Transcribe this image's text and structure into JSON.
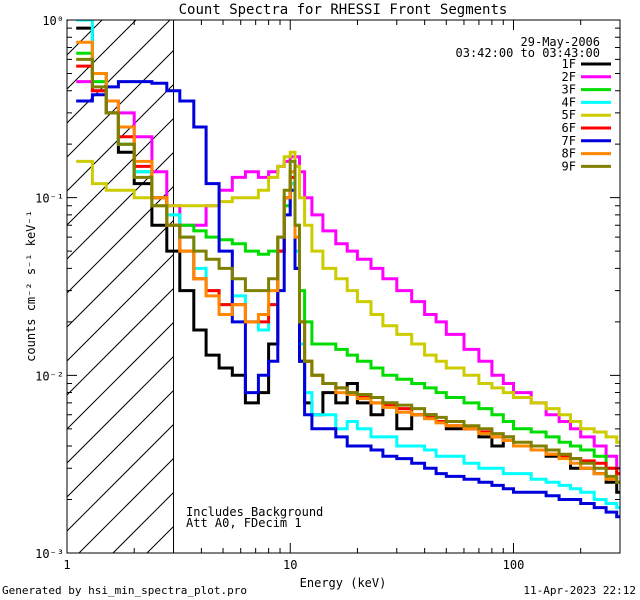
{
  "chart_data": {
    "type": "line",
    "title": "Count Spectra for RHESSI Front Segments",
    "xlabel": "Energy (keV)",
    "ylabel": "counts cm⁻² s⁻¹ keV⁻¹",
    "xscale": "log",
    "yscale": "log",
    "xlim": [
      1,
      300
    ],
    "ylim": [
      0.001,
      1
    ],
    "xticks": [
      {
        "value": 1,
        "label": "1"
      },
      {
        "value": 10,
        "label": "10"
      },
      {
        "value": 100,
        "label": "100"
      }
    ],
    "yticks": [
      {
        "value": 1,
        "label": "10⁰"
      },
      {
        "value": 0.1,
        "label": "10⁻¹"
      },
      {
        "value": 0.01,
        "label": "10⁻²"
      },
      {
        "value": 0.001,
        "label": "10⁻³"
      }
    ],
    "shaded_region": {
      "x_from": 1,
      "x_to": 3,
      "style": "diagonal hatch"
    },
    "date": "29-May-2006",
    "time_range": "03:42:00 to 03:43:00",
    "annotations": [
      "Includes Background",
      "Att A0, FDecim 1"
    ],
    "legend_position": "top-right",
    "series": [
      {
        "name": "1F",
        "color": "#000000",
        "x": [
          1.1,
          1.3,
          1.5,
          1.7,
          2.0,
          2.4,
          2.8,
          3.2,
          3.7,
          4.2,
          4.8,
          5.5,
          6.3,
          7.2,
          8.0,
          8.8,
          9.4,
          10.0,
          10.5,
          11.0,
          11.6,
          12.5,
          14,
          16,
          18,
          20,
          23,
          26,
          30,
          35,
          40,
          45,
          50,
          60,
          70,
          80,
          90,
          100,
          120,
          140,
          160,
          180,
          200,
          230,
          260,
          290
        ],
        "values": [
          0.9,
          0.5,
          0.3,
          0.18,
          0.12,
          0.07,
          0.05,
          0.03,
          0.018,
          0.013,
          0.011,
          0.01,
          0.007,
          0.008,
          0.015,
          0.05,
          0.1,
          0.12,
          0.04,
          0.012,
          0.007,
          0.006,
          0.008,
          0.007,
          0.009,
          0.007,
          0.006,
          0.007,
          0.005,
          0.006,
          0.006,
          0.0055,
          0.005,
          0.005,
          0.0045,
          0.004,
          0.0045,
          0.004,
          0.004,
          0.0035,
          0.0035,
          0.003,
          0.003,
          0.0028,
          0.0025,
          0.0022
        ]
      },
      {
        "name": "2F",
        "color": "#ff00ff",
        "x": [
          1.1,
          1.3,
          1.5,
          1.7,
          2.0,
          2.4,
          2.8,
          3.2,
          3.7,
          4.2,
          4.8,
          5.5,
          6.3,
          7.2,
          8.0,
          8.8,
          9.4,
          10.0,
          10.5,
          11.0,
          11.6,
          12.5,
          14,
          16,
          18,
          20,
          23,
          26,
          30,
          35,
          40,
          45,
          50,
          60,
          70,
          80,
          90,
          100,
          120,
          140,
          160,
          180,
          200,
          230,
          260,
          290
        ],
        "values": [
          0.45,
          0.4,
          0.35,
          0.3,
          0.22,
          0.14,
          0.09,
          0.07,
          0.07,
          0.09,
          0.11,
          0.13,
          0.14,
          0.13,
          0.14,
          0.15,
          0.16,
          0.17,
          0.17,
          0.14,
          0.1,
          0.08,
          0.065,
          0.055,
          0.05,
          0.045,
          0.04,
          0.035,
          0.03,
          0.026,
          0.022,
          0.02,
          0.017,
          0.014,
          0.012,
          0.01,
          0.009,
          0.008,
          0.007,
          0.006,
          0.0055,
          0.005,
          0.0045,
          0.004,
          0.0035,
          0.003
        ]
      },
      {
        "name": "3F",
        "color": "#00dd00",
        "x": [
          1.1,
          1.3,
          1.5,
          1.7,
          2.0,
          2.4,
          2.8,
          3.2,
          3.7,
          4.2,
          4.8,
          5.5,
          6.3,
          7.2,
          8.0,
          8.8,
          9.4,
          10.0,
          10.5,
          11.0,
          11.6,
          12.5,
          14,
          16,
          18,
          20,
          23,
          26,
          30,
          35,
          40,
          45,
          50,
          60,
          70,
          80,
          90,
          100,
          120,
          140,
          160,
          180,
          200,
          230,
          260,
          290
        ],
        "values": [
          0.65,
          0.45,
          0.3,
          0.2,
          0.14,
          0.1,
          0.08,
          0.07,
          0.065,
          0.06,
          0.058,
          0.055,
          0.05,
          0.048,
          0.05,
          0.06,
          0.09,
          0.14,
          0.07,
          0.03,
          0.02,
          0.015,
          0.015,
          0.014,
          0.013,
          0.012,
          0.011,
          0.01,
          0.0095,
          0.009,
          0.0085,
          0.008,
          0.0075,
          0.007,
          0.0065,
          0.006,
          0.0055,
          0.005,
          0.0048,
          0.0045,
          0.0042,
          0.004,
          0.0038,
          0.0035,
          0.003,
          0.0028
        ]
      },
      {
        "name": "4F",
        "color": "#00ffff",
        "x": [
          1.1,
          1.3,
          1.5,
          1.7,
          2.0,
          2.4,
          2.8,
          3.2,
          3.7,
          4.2,
          4.8,
          5.5,
          6.3,
          7.2,
          8.0,
          8.8,
          9.4,
          10.0,
          10.5,
          11.0,
          11.6,
          12.5,
          14,
          16,
          18,
          20,
          23,
          26,
          30,
          35,
          40,
          45,
          50,
          60,
          70,
          80,
          90,
          100,
          120,
          140,
          160,
          180,
          200,
          230,
          260,
          290
        ],
        "values": [
          1.0,
          0.5,
          0.3,
          0.2,
          0.14,
          0.1,
          0.08,
          0.06,
          0.04,
          0.03,
          0.025,
          0.028,
          0.02,
          0.018,
          0.025,
          0.06,
          0.1,
          0.12,
          0.05,
          0.015,
          0.008,
          0.006,
          0.006,
          0.005,
          0.0055,
          0.005,
          0.0045,
          0.0045,
          0.004,
          0.004,
          0.0038,
          0.0035,
          0.0035,
          0.0032,
          0.003,
          0.003,
          0.0028,
          0.0028,
          0.0026,
          0.0025,
          0.0024,
          0.0023,
          0.0022,
          0.002,
          0.0019,
          0.0018
        ]
      },
      {
        "name": "5F",
        "color": "#cccc00",
        "x": [
          1.1,
          1.3,
          1.5,
          1.7,
          2.0,
          2.4,
          2.8,
          3.2,
          3.7,
          4.2,
          4.8,
          5.5,
          6.3,
          7.2,
          8.0,
          8.8,
          9.4,
          10.0,
          10.5,
          11.0,
          11.6,
          12.5,
          14,
          16,
          18,
          20,
          23,
          26,
          30,
          35,
          40,
          45,
          50,
          60,
          70,
          80,
          90,
          100,
          120,
          140,
          160,
          180,
          200,
          230,
          260,
          290
        ],
        "values": [
          0.16,
          0.12,
          0.11,
          0.11,
          0.1,
          0.09,
          0.09,
          0.09,
          0.09,
          0.09,
          0.095,
          0.1,
          0.1,
          0.11,
          0.13,
          0.15,
          0.17,
          0.18,
          0.15,
          0.1,
          0.07,
          0.05,
          0.04,
          0.035,
          0.03,
          0.026,
          0.022,
          0.019,
          0.017,
          0.015,
          0.013,
          0.012,
          0.011,
          0.01,
          0.009,
          0.0085,
          0.008,
          0.0075,
          0.007,
          0.0065,
          0.006,
          0.0055,
          0.005,
          0.0048,
          0.0045,
          0.0042
        ]
      },
      {
        "name": "6F",
        "color": "#ff0000",
        "x": [
          1.1,
          1.3,
          1.5,
          1.7,
          2.0,
          2.4,
          2.8,
          3.2,
          3.7,
          4.2,
          4.8,
          5.5,
          6.3,
          7.2,
          8.0,
          8.8,
          9.4,
          10.0,
          10.5,
          11.0,
          11.6,
          12.5,
          14,
          16,
          18,
          20,
          23,
          26,
          30,
          35,
          40,
          45,
          50,
          60,
          70,
          80,
          90,
          100,
          120,
          140,
          160,
          180,
          200,
          230,
          260,
          290
        ],
        "values": [
          0.55,
          0.4,
          0.3,
          0.22,
          0.15,
          0.1,
          0.07,
          0.05,
          0.035,
          0.03,
          0.025,
          0.025,
          0.02,
          0.02,
          0.025,
          0.05,
          0.1,
          0.13,
          0.06,
          0.02,
          0.012,
          0.01,
          0.009,
          0.0085,
          0.008,
          0.0075,
          0.007,
          0.0068,
          0.0065,
          0.006,
          0.0058,
          0.0055,
          0.0052,
          0.005,
          0.0048,
          0.0045,
          0.0043,
          0.004,
          0.0038,
          0.0036,
          0.0035,
          0.0034,
          0.0033,
          0.0032,
          0.003,
          0.0028
        ]
      },
      {
        "name": "7F",
        "color": "#0000dd",
        "x": [
          1.1,
          1.3,
          1.5,
          1.7,
          2.0,
          2.4,
          2.8,
          3.2,
          3.7,
          4.2,
          4.8,
          5.5,
          6.3,
          7.2,
          8.0,
          8.8,
          9.4,
          10.0,
          10.5,
          11.0,
          11.6,
          12.5,
          14,
          16,
          18,
          20,
          23,
          26,
          30,
          35,
          40,
          45,
          50,
          60,
          70,
          80,
          90,
          100,
          120,
          140,
          160,
          180,
          200,
          230,
          260,
          290
        ],
        "values": [
          0.35,
          0.38,
          0.42,
          0.45,
          0.45,
          0.44,
          0.4,
          0.35,
          0.25,
          0.12,
          0.05,
          0.02,
          0.008,
          0.01,
          0.012,
          0.03,
          0.08,
          0.11,
          0.04,
          0.012,
          0.006,
          0.005,
          0.005,
          0.0045,
          0.004,
          0.004,
          0.0038,
          0.0035,
          0.0034,
          0.0032,
          0.003,
          0.0028,
          0.0027,
          0.0026,
          0.0025,
          0.0024,
          0.0023,
          0.0022,
          0.0022,
          0.0021,
          0.002,
          0.002,
          0.0019,
          0.0018,
          0.0017,
          0.0016
        ]
      },
      {
        "name": "8F",
        "color": "#ff8800",
        "x": [
          1.1,
          1.3,
          1.5,
          1.7,
          2.0,
          2.4,
          2.8,
          3.2,
          3.7,
          4.2,
          4.8,
          5.5,
          6.3,
          7.2,
          8.0,
          8.8,
          9.4,
          10.0,
          10.5,
          11.0,
          11.6,
          12.5,
          14,
          16,
          18,
          20,
          23,
          26,
          30,
          35,
          40,
          45,
          50,
          60,
          70,
          80,
          90,
          100,
          120,
          140,
          160,
          180,
          200,
          230,
          260,
          290
        ],
        "values": [
          0.75,
          0.5,
          0.35,
          0.25,
          0.16,
          0.1,
          0.07,
          0.05,
          0.035,
          0.028,
          0.022,
          0.025,
          0.02,
          0.022,
          0.03,
          0.06,
          0.1,
          0.14,
          0.06,
          0.02,
          0.012,
          0.01,
          0.009,
          0.008,
          0.0078,
          0.0074,
          0.007,
          0.0066,
          0.0062,
          0.006,
          0.0057,
          0.0054,
          0.0052,
          0.005,
          0.0047,
          0.0045,
          0.0043,
          0.004,
          0.0038,
          0.0036,
          0.0034,
          0.0032,
          0.003,
          0.0028,
          0.0026,
          0.0025
        ]
      },
      {
        "name": "9F",
        "color": "#808000",
        "x": [
          1.1,
          1.3,
          1.5,
          1.7,
          2.0,
          2.4,
          2.8,
          3.2,
          3.7,
          4.2,
          4.8,
          5.5,
          6.3,
          7.2,
          8.0,
          8.8,
          9.4,
          10.0,
          10.5,
          11.0,
          11.6,
          12.5,
          14,
          16,
          18,
          20,
          23,
          26,
          30,
          35,
          40,
          45,
          50,
          60,
          70,
          80,
          90,
          100,
          120,
          140,
          160,
          180,
          200,
          230,
          260,
          290
        ],
        "values": [
          0.6,
          0.42,
          0.3,
          0.2,
          0.13,
          0.09,
          0.07,
          0.06,
          0.05,
          0.045,
          0.04,
          0.035,
          0.03,
          0.03,
          0.035,
          0.06,
          0.11,
          0.16,
          0.07,
          0.02,
          0.012,
          0.01,
          0.009,
          0.0085,
          0.008,
          0.0078,
          0.0075,
          0.007,
          0.0068,
          0.0065,
          0.006,
          0.0058,
          0.0055,
          0.0052,
          0.005,
          0.0047,
          0.0045,
          0.0042,
          0.004,
          0.0038,
          0.0036,
          0.0034,
          0.0032,
          0.003,
          0.0027,
          0.0025
        ]
      }
    ]
  },
  "footer": {
    "generated_by": "Generated by hsi_min_spectra_plot.pro",
    "timestamp": "11-Apr-2023 22:12"
  }
}
